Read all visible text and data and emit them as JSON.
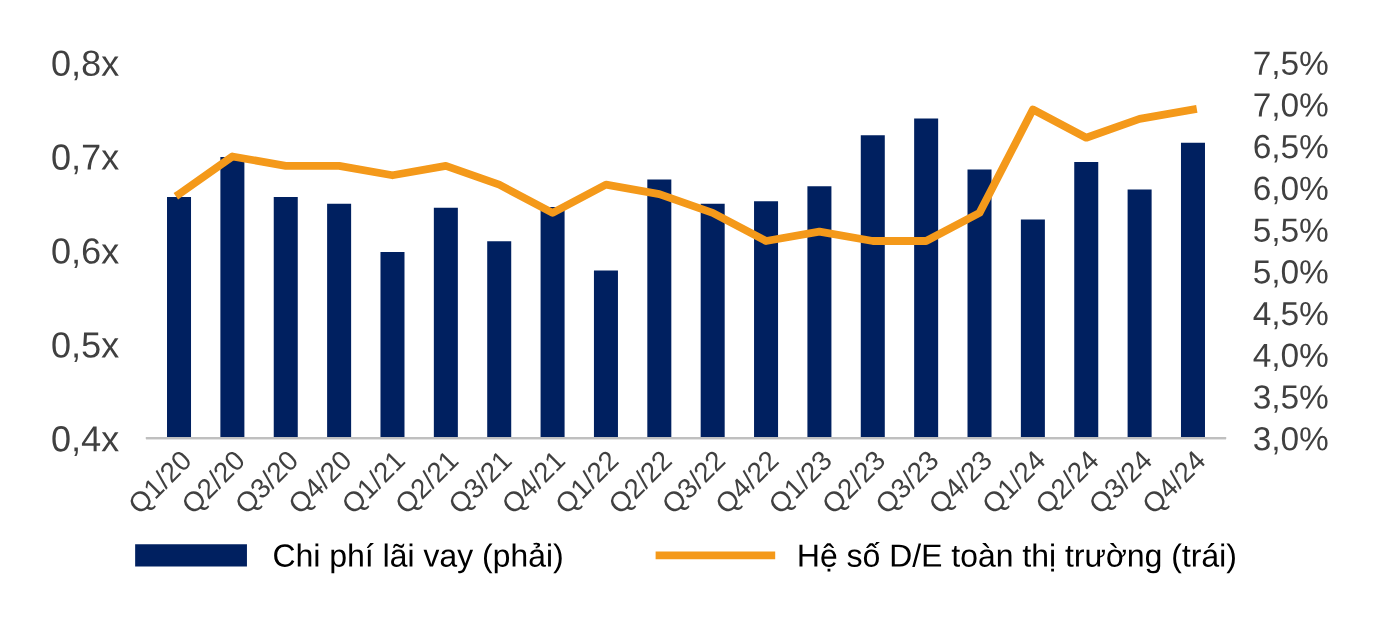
{
  "chart_data": {
    "type": "bar",
    "categories": [
      "Q1/20",
      "Q2/20",
      "Q3/20",
      "Q4/20",
      "Q1/21",
      "Q2/21",
      "Q3/21",
      "Q4/21",
      "Q1/22",
      "Q2/22",
      "Q3/22",
      "Q4/22",
      "Q1/23",
      "Q2/23",
      "Q3/23",
      "Q4/23",
      "Q1/24",
      "Q2/24",
      "Q3/24",
      "Q4/24"
    ],
    "series": [
      {
        "name": "Chi phí lãi vay (phải)",
        "axis": "y2",
        "color": "#002060",
        "values": [
          5.89,
          6.37,
          5.89,
          5.81,
          5.23,
          5.76,
          5.36,
          5.77,
          5.01,
          6.1,
          5.81,
          5.84,
          6.02,
          6.63,
          6.83,
          6.22,
          5.62,
          6.31,
          5.98,
          6.54
        ]
      },
      {
        "name": "Hệ số D/E toàn thị trường (trái)",
        "type": "line",
        "axis": "y",
        "color": "#f4991a",
        "values": [
          0.66,
          0.7,
          0.69,
          0.69,
          0.68,
          0.69,
          0.67,
          0.64,
          0.67,
          0.66,
          0.64,
          0.61,
          0.62,
          0.61,
          0.61,
          0.64,
          0.75,
          0.72,
          0.74,
          0.75
        ]
      }
    ],
    "ylim": [
      0.4,
      0.8
    ],
    "yticks": [
      {
        "value": 0.4,
        "label": "0,4x"
      },
      {
        "value": 0.5,
        "label": "0,5x"
      },
      {
        "value": 0.6,
        "label": "0,6x"
      },
      {
        "value": 0.7,
        "label": "0,7x"
      },
      {
        "value": 0.8,
        "label": "0,8x"
      }
    ],
    "y2lim": [
      3.0,
      7.5
    ],
    "y2ticks": [
      {
        "value": 3.0,
        "label": "3,0%"
      },
      {
        "value": 3.5,
        "label": "3,5%"
      },
      {
        "value": 4.0,
        "label": "4,0%"
      },
      {
        "value": 4.5,
        "label": "4,5%"
      },
      {
        "value": 5.0,
        "label": "5,0%"
      },
      {
        "value": 5.5,
        "label": "5,5%"
      },
      {
        "value": 6.0,
        "label": "6,0%"
      },
      {
        "value": 6.5,
        "label": "6,5%"
      },
      {
        "value": 7.0,
        "label": "7,0%"
      },
      {
        "value": 7.5,
        "label": "7,5%"
      }
    ],
    "legend": "bottom",
    "grid": false
  }
}
